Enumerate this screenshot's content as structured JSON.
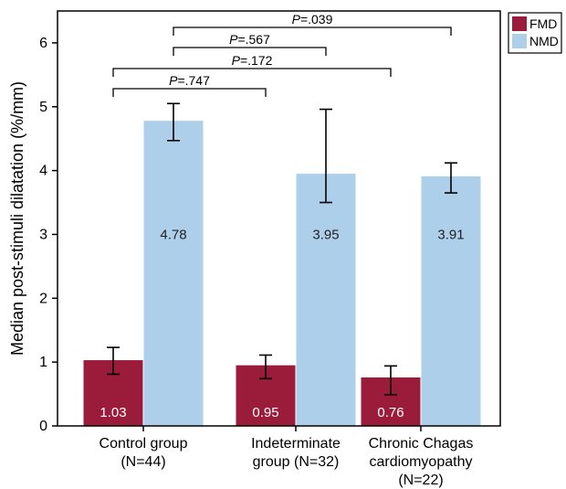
{
  "colors": {
    "fmd": "#9b1b3b",
    "nmd": "#aecfea",
    "axis": "#000000"
  },
  "chart_data": {
    "type": "bar",
    "title": "",
    "xlabel": "",
    "ylabel": "Median post-stimuli dilatation (%/mm)",
    "ylim": [
      0,
      6.5
    ],
    "yticks": [
      "0",
      "1",
      "2",
      "3",
      "4",
      "5",
      "6"
    ],
    "grid": false,
    "legend_position": "top-right",
    "categories": [
      [
        "Control group",
        "(N=44)"
      ],
      [
        "Indeterminate",
        "group (N=32)"
      ],
      [
        "Chronic Chagas",
        "cardiomyopathy",
        "(N=22)"
      ]
    ],
    "series": [
      {
        "name": "FMD",
        "values": [
          1.03,
          0.95,
          0.76
        ],
        "labels": [
          "1.03",
          "0.95",
          "0.76"
        ],
        "err_low": [
          0.81,
          0.74,
          0.49
        ],
        "err_high": [
          1.23,
          1.11,
          0.94
        ]
      },
      {
        "name": "NMD",
        "values": [
          4.78,
          3.95,
          3.91
        ],
        "labels": [
          "4.78",
          "3.95",
          "3.91"
        ],
        "err_low": [
          4.47,
          3.5,
          3.65
        ],
        "err_high": [
          5.05,
          4.96,
          4.12
        ]
      }
    ],
    "annotations": [
      {
        "p_italic": "P",
        "p_value": "=.747",
        "from": [
          0,
          0
        ],
        "to": [
          1,
          0
        ],
        "tier": 0
      },
      {
        "p_italic": "P",
        "p_value": "=.172",
        "from": [
          0,
          0
        ],
        "to": [
          2,
          0
        ],
        "tier": 1
      },
      {
        "p_italic": "P",
        "p_value": "=.567",
        "from": [
          0,
          1
        ],
        "to": [
          1,
          1
        ],
        "tier": 2
      },
      {
        "p_italic": "P",
        "p_value": "=.039",
        "from": [
          0,
          1
        ],
        "to": [
          2,
          1
        ],
        "tier": 3
      }
    ]
  }
}
